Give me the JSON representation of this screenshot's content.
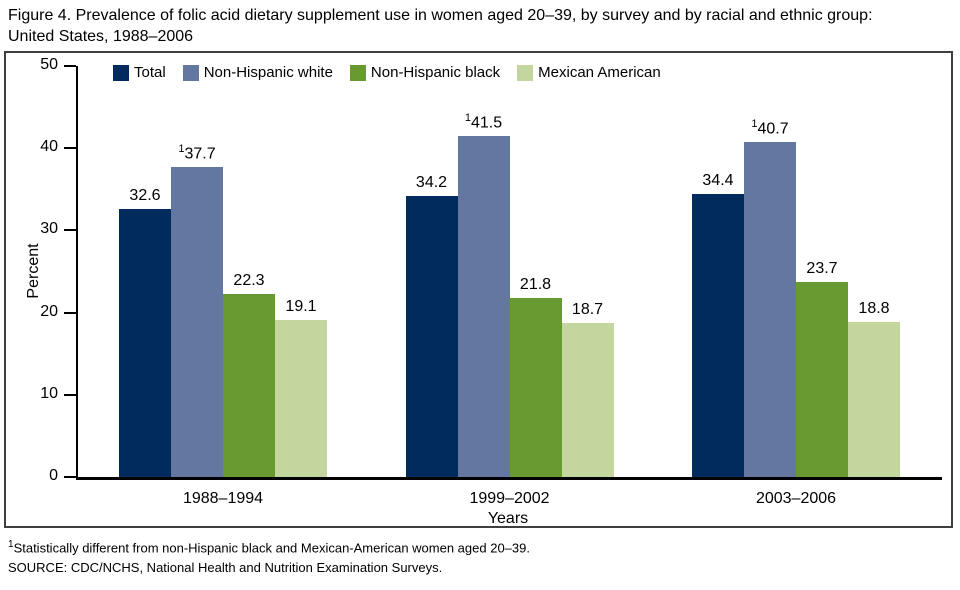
{
  "title": {
    "line1": "Figure 4. Prevalence of folic acid dietary supplement use in women aged 20–39, by survey and by racial and ethnic group:",
    "line2": "United States, 1988–2006"
  },
  "chart_data": {
    "type": "bar",
    "title": "Figure 4. Prevalence of folic acid dietary supplement use in women aged 20–39, by survey and by racial and ethnic group: United States, 1988–2006",
    "categories": [
      "1988–1994",
      "1999–2002",
      "2003–2006"
    ],
    "series": [
      {
        "name": "Total",
        "color": "#002b5c",
        "values": [
          32.6,
          34.2,
          34.4
        ]
      },
      {
        "name": "Non-Hispanic white",
        "color": "#6377a0",
        "values": [
          37.7,
          41.5,
          40.7
        ],
        "marker": "1"
      },
      {
        "name": "Non-Hispanic black",
        "color": "#699a31",
        "values": [
          22.3,
          21.8,
          23.7
        ]
      },
      {
        "name": "Mexican American",
        "color": "#c3d69e",
        "values": [
          19.1,
          18.7,
          18.8
        ]
      }
    ],
    "xlabel": "Years",
    "ylabel": "Percent",
    "ylim": [
      0,
      50
    ],
    "yticks": [
      0,
      10,
      20,
      30,
      40,
      50
    ],
    "grid": false,
    "legend_position": "top"
  },
  "footnotes": {
    "marker": "1",
    "note": "Statistically different from non-Hispanic black and Mexican-American women aged 20–39.",
    "source": "SOURCE: CDC/NCHS, National Health and Nutrition Examination Surveys."
  }
}
